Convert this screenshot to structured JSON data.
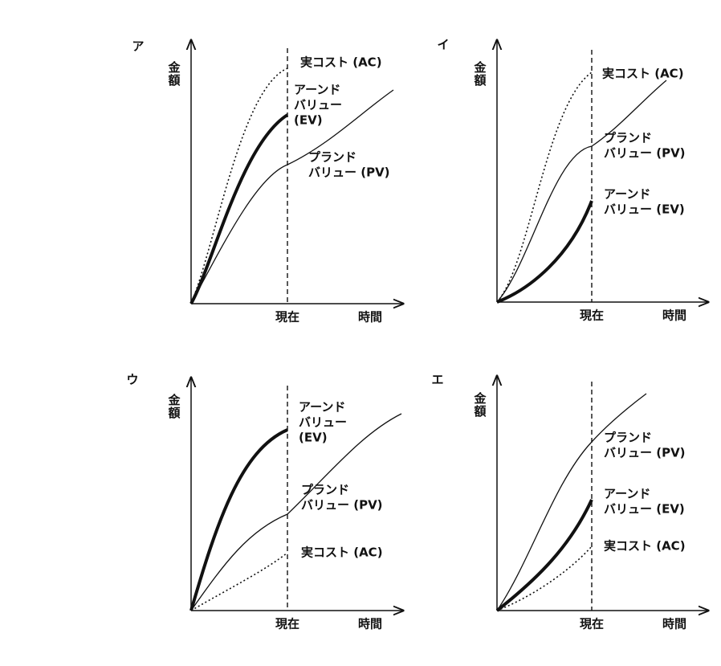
{
  "panels": [
    {
      "label": "ア",
      "y_axis_label": "金額",
      "x_axis_label": "時間",
      "now_label": "現在",
      "ac_label": [
        "実コスト (AC)"
      ],
      "ev_label": [
        "アーンド",
        "バリュー",
        "(EV)"
      ],
      "pv_label": [
        "プランド",
        "バリュー (PV)"
      ]
    },
    {
      "label": "イ",
      "y_axis_label": "金額",
      "x_axis_label": "時間",
      "now_label": "現在",
      "ac_label": [
        "実コスト (AC)"
      ],
      "ev_label": [
        "アーンド",
        "バリュー (EV)"
      ],
      "pv_label": [
        "プランド",
        "バリュー (PV)"
      ]
    },
    {
      "label": "ウ",
      "y_axis_label": "金額",
      "x_axis_label": "時間",
      "now_label": "現在",
      "ac_label": [
        "実コスト (AC)"
      ],
      "ev_label": [
        "アーンド",
        "バリュー",
        "(EV)"
      ],
      "pv_label": [
        "プランド",
        "バリュー (PV)"
      ]
    },
    {
      "label": "エ",
      "y_axis_label": "金額",
      "x_axis_label": "時間",
      "now_label": "現在",
      "ac_label": [
        "実コスト (AC)"
      ],
      "ev_label": [
        "アーンド",
        "バリュー (EV)"
      ],
      "pv_label": [
        "プランド",
        "バリュー (PV)"
      ]
    }
  ]
}
